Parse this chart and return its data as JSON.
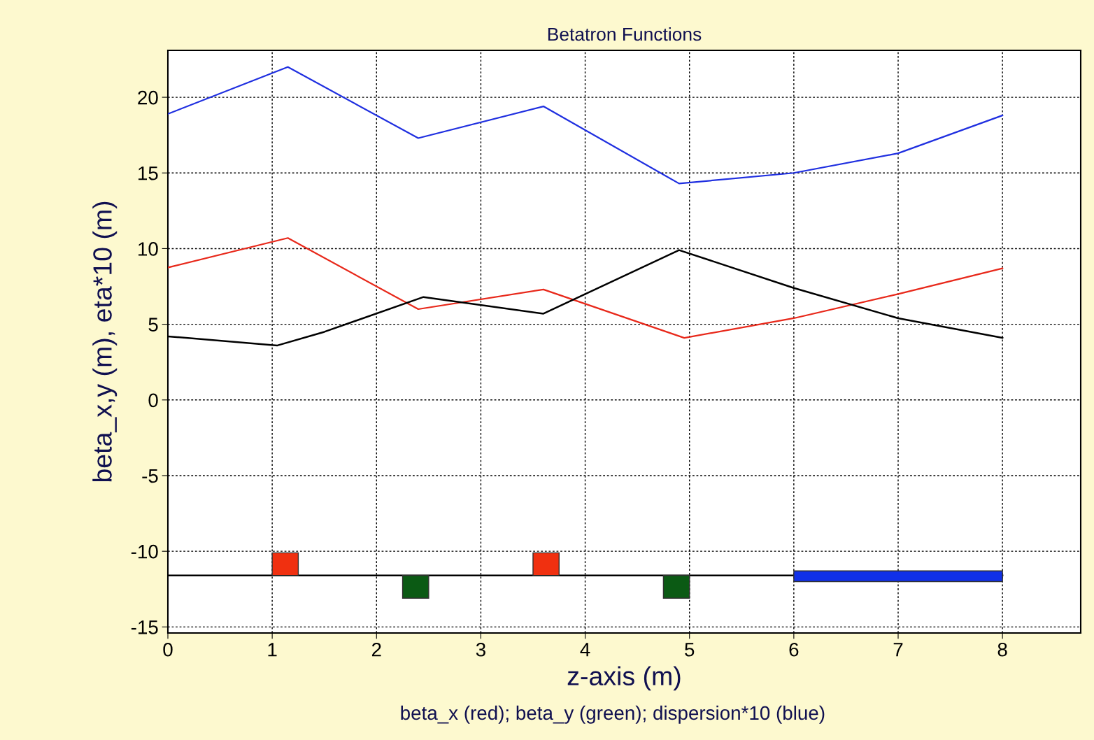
{
  "chart_data": {
    "type": "line",
    "title": "Betatron Functions",
    "xlabel": "z-axis (m)",
    "ylabel": "beta_x,y (m), eta*10 (m)",
    "annotations": [
      "beta_x (red); beta_y (green); dispersion*10 (blue)"
    ],
    "xlim": [
      0,
      8.75
    ],
    "xticks": [
      0,
      1,
      2,
      3,
      4,
      5,
      6,
      7,
      8
    ],
    "ylim": [
      -15.4,
      23.1
    ],
    "yticks": [
      -15,
      -10,
      -5,
      0,
      5,
      10,
      15,
      20
    ],
    "grid": true,
    "series": [
      {
        "color": "#1f2fe0",
        "x": [
          0,
          1.15,
          2.4,
          3.6,
          4.9,
          6,
          7,
          8
        ],
        "values": [
          18.9,
          22.0,
          17.3,
          19.4,
          14.3,
          15.0,
          16.3,
          18.8
        ]
      },
      {
        "color": "#e8281a",
        "x": [
          0,
          1.15,
          2.4,
          3.6,
          4.95,
          6,
          7,
          8
        ],
        "values": [
          8.75,
          10.7,
          6.0,
          7.3,
          4.1,
          5.4,
          7.0,
          8.7
        ]
      },
      {
        "color": "#000000",
        "x": [
          0,
          1.05,
          1.5,
          2.45,
          3.6,
          4.9,
          6,
          7,
          8
        ],
        "values": [
          4.2,
          3.6,
          4.5,
          6.8,
          5.7,
          9.9,
          7.4,
          5.4,
          4.1
        ]
      },
      {
        "color": "#000000",
        "x": [
          0,
          8
        ],
        "values": [
          -11.6,
          -11.6
        ]
      },
      {
        "type": "area",
        "color": "#f03010",
        "x": [
          1.0,
          1.0,
          1.25,
          1.25
        ],
        "values": [
          -11.6,
          -10.1,
          -10.1,
          -11.6
        ]
      },
      {
        "type": "area",
        "color": "#0b5a14",
        "x": [
          2.25,
          2.25,
          2.5,
          2.5
        ],
        "values": [
          -11.6,
          -13.1,
          -13.1,
          -11.6
        ]
      },
      {
        "type": "area",
        "color": "#f03010",
        "x": [
          3.5,
          3.5,
          3.75,
          3.75
        ],
        "values": [
          -11.6,
          -10.1,
          -10.1,
          -11.6
        ]
      },
      {
        "type": "area",
        "color": "#0b5a14",
        "x": [
          4.75,
          4.75,
          5.0,
          5.0
        ],
        "values": [
          -11.6,
          -13.1,
          -13.1,
          -11.6
        ]
      },
      {
        "type": "area",
        "color": "#1030e8",
        "x": [
          6.0,
          6.0,
          8.0,
          8.0
        ],
        "values": [
          -12.0,
          -11.3,
          -11.3,
          -12.0
        ]
      }
    ]
  }
}
